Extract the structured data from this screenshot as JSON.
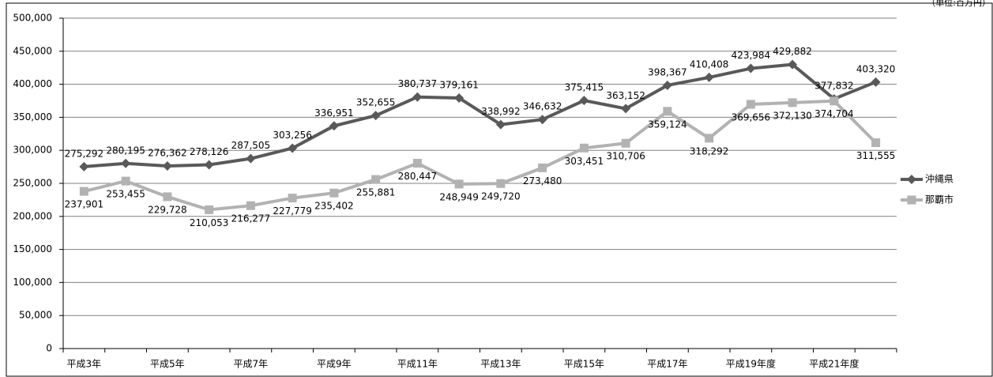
{
  "chart_data": {
    "type": "line",
    "annotation": "（単位:百万円）",
    "categories": [
      "平成3年",
      null,
      "平成5年",
      null,
      "平成7年",
      null,
      "平成9年",
      null,
      "平成11年",
      null,
      "平成13年",
      null,
      "平成15年",
      null,
      "平成17年",
      null,
      "平成19年度",
      null,
      "平成21年度",
      null
    ],
    "series": [
      {
        "name": "沖縄県",
        "color": "#595959",
        "marker": "diamond",
        "values": [
          275292,
          280195,
          276362,
          278126,
          287505,
          303256,
          336951,
          352655,
          380737,
          379161,
          338992,
          346632,
          375415,
          363152,
          398367,
          410408,
          423984,
          429882,
          377832,
          403320
        ],
        "value_labels": [
          "275,292",
          "280,195",
          "276,362",
          "278,126",
          "287,505",
          "303,256",
          "336,951",
          "352,655",
          "380,737",
          "379,161",
          "338,992",
          "346,632",
          "375,415",
          "363,152",
          "398,367",
          "410,408",
          "423,984",
          "429,882",
          "377,832",
          "403,320"
        ]
      },
      {
        "name": "那覇市",
        "color": "#b2b2b2",
        "marker": "square",
        "values": [
          237901,
          253455,
          229728,
          210053,
          216277,
          227779,
          235402,
          255881,
          280447,
          248949,
          249720,
          273480,
          303451,
          310706,
          359124,
          318292,
          369656,
          372130,
          374704,
          311555
        ],
        "value_labels": [
          "237,901",
          "253,455",
          "229,728",
          "210,053",
          "216,277",
          "227,779",
          "235,402",
          "255,881",
          "280,447",
          "248,949",
          "249,720",
          "273,480",
          "303,451",
          "310,706",
          "359,124",
          "318,292",
          "369,656",
          "372,130",
          "374,704",
          "311,555"
        ]
      }
    ],
    "ylim": [
      0,
      500000
    ],
    "yticks": [
      0,
      {
        "value": 50000,
        "label": "50,000"
      },
      {
        "value": 100000,
        "label": "100,000"
      },
      {
        "value": 150000,
        "label": "150,000"
      },
      {
        "value": 200000,
        "label": "200,000"
      },
      {
        "value": 250000,
        "label": "250,000"
      },
      {
        "value": 300000,
        "label": "300,000"
      },
      {
        "value": 350000,
        "label": "350,000"
      },
      {
        "value": 400000,
        "label": "400,000"
      },
      {
        "value": 450000,
        "label": "450,000"
      },
      {
        "value": 500000,
        "label": "500,000"
      }
    ],
    "grid": true,
    "legend": "right"
  }
}
